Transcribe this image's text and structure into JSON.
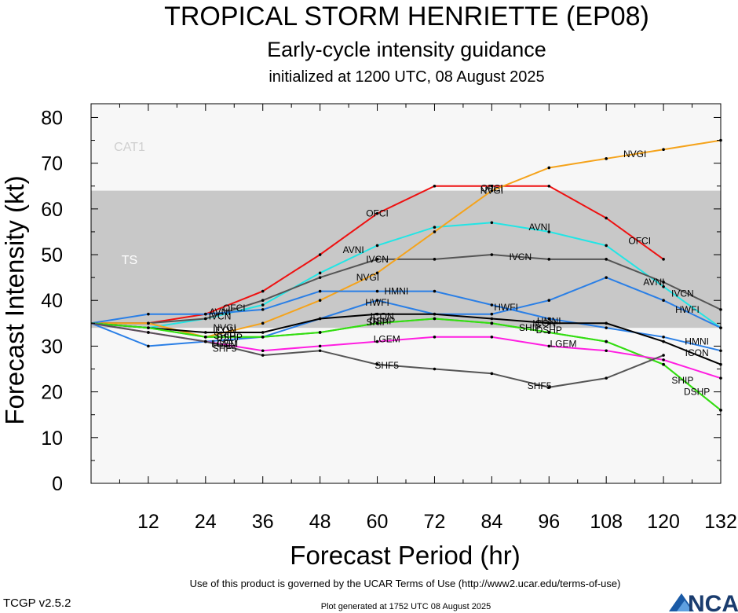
{
  "header": {
    "title": "TROPICAL STORM HENRIETTE (EP08)",
    "subtitle": "Early-cycle intensity guidance",
    "init_line": "initialized at 1200 UTC, 08 August 2025"
  },
  "footer": {
    "terms": "Use of this product is governed by the UCAR Terms of Use (http://www2.ucar.edu/terms-of-use)",
    "generated": "Plot generated at 1752 UTC   08 August 2025",
    "version": "TCGP v2.5.2",
    "logo_text": "NCAR"
  },
  "chart_data": {
    "type": "line",
    "title": "TROPICAL STORM HENRIETTE (EP08)",
    "xlabel": "Forecast Period (hr)",
    "ylabel": "Forecast Intensity (kt)",
    "xlim": [
      0,
      132
    ],
    "ylim": [
      0,
      80
    ],
    "x_ticks": [
      12,
      24,
      36,
      48,
      60,
      72,
      84,
      96,
      108,
      120,
      132
    ],
    "y_ticks": [
      0,
      10,
      20,
      30,
      40,
      50,
      60,
      70,
      80
    ],
    "grid": false,
    "bands": [
      {
        "label": "TS",
        "from": 34,
        "to": 64,
        "color": "#c8c8c8"
      },
      {
        "label": "CAT1",
        "from": 64,
        "to": 83,
        "color": "#f7f7f7"
      }
    ],
    "series": [
      {
        "name": "OFCI",
        "color": "#ee1111",
        "points": [
          [
            0,
            35
          ],
          [
            12,
            35
          ],
          [
            24,
            37
          ],
          [
            36,
            42
          ],
          [
            48,
            50
          ],
          [
            60,
            59
          ],
          [
            72,
            65
          ],
          [
            84,
            65
          ],
          [
            96,
            65
          ],
          [
            108,
            58
          ],
          [
            120,
            49
          ]
        ],
        "labels": [
          [
            30,
            38.3
          ],
          [
            60,
            59
          ],
          [
            84,
            64.5
          ],
          [
            115,
            53
          ]
        ]
      },
      {
        "name": "AVNI",
        "color": "#22e5e5",
        "points": [
          [
            0,
            35
          ],
          [
            12,
            34
          ],
          [
            24,
            36
          ],
          [
            36,
            39
          ],
          [
            48,
            46
          ],
          [
            60,
            52
          ],
          [
            72,
            56
          ],
          [
            84,
            57
          ],
          [
            96,
            55
          ],
          [
            108,
            52
          ],
          [
            120,
            43
          ],
          [
            132,
            34
          ]
        ],
        "labels": [
          [
            27,
            37.5
          ],
          [
            55,
            51
          ],
          [
            94,
            56
          ],
          [
            118,
            44
          ]
        ]
      },
      {
        "name": "IVCN",
        "color": "#555555",
        "points": [
          [
            0,
            35
          ],
          [
            12,
            35
          ],
          [
            24,
            36
          ],
          [
            36,
            40
          ],
          [
            48,
            45
          ],
          [
            60,
            49
          ],
          [
            72,
            49
          ],
          [
            84,
            50
          ],
          [
            96,
            49
          ],
          [
            108,
            49
          ],
          [
            120,
            44
          ],
          [
            132,
            38
          ]
        ],
        "labels": [
          [
            27,
            36.5
          ],
          [
            60,
            49
          ],
          [
            90,
            49.5
          ],
          [
            124,
            41.5
          ]
        ]
      },
      {
        "name": "NVGI",
        "color": "#f5a31b",
        "points": [
          [
            0,
            35
          ],
          [
            12,
            35
          ],
          [
            24,
            32
          ],
          [
            36,
            35
          ],
          [
            48,
            40
          ],
          [
            60,
            46
          ],
          [
            72,
            55
          ],
          [
            84,
            64
          ],
          [
            96,
            69
          ],
          [
            108,
            71
          ],
          [
            120,
            73
          ],
          [
            132,
            75
          ]
        ],
        "labels": [
          [
            28,
            34
          ],
          [
            58,
            45
          ],
          [
            84,
            64
          ],
          [
            114,
            72
          ]
        ]
      },
      {
        "name": "HMNI",
        "color": "#2a7fe6",
        "points": [
          [
            0,
            35
          ],
          [
            12,
            37
          ],
          [
            24,
            37
          ],
          [
            36,
            38
          ],
          [
            48,
            42
          ],
          [
            60,
            42
          ],
          [
            72,
            42
          ],
          [
            84,
            39
          ],
          [
            96,
            36
          ],
          [
            108,
            34
          ],
          [
            120,
            32
          ],
          [
            132,
            29
          ]
        ],
        "labels": [
          [
            64,
            42
          ],
          [
            96,
            35.5
          ],
          [
            127,
            31
          ]
        ]
      },
      {
        "name": "HWFI",
        "color": "#2a7fe6",
        "points": [
          [
            0,
            35
          ],
          [
            12,
            30
          ],
          [
            24,
            31
          ],
          [
            36,
            32
          ],
          [
            48,
            36
          ],
          [
            60,
            40
          ],
          [
            72,
            37
          ],
          [
            84,
            37
          ],
          [
            96,
            40
          ],
          [
            108,
            45
          ],
          [
            120,
            40
          ],
          [
            132,
            34
          ]
        ],
        "labels": [
          [
            28,
            30.5
          ],
          [
            60,
            39.5
          ],
          [
            87,
            38.5
          ],
          [
            125,
            38
          ]
        ]
      },
      {
        "name": "ICON",
        "color": "#000000",
        "points": [
          [
            0,
            35
          ],
          [
            12,
            34
          ],
          [
            24,
            33
          ],
          [
            36,
            33
          ],
          [
            48,
            36
          ],
          [
            60,
            37
          ],
          [
            72,
            37
          ],
          [
            84,
            36
          ],
          [
            96,
            35
          ],
          [
            108,
            35
          ],
          [
            120,
            31
          ],
          [
            132,
            26
          ]
        ],
        "labels": [
          [
            28,
            33.5
          ],
          [
            61,
            36.5
          ],
          [
            95,
            35
          ],
          [
            127,
            28.5
          ]
        ]
      },
      {
        "name": "DSHP",
        "color": "#33dd11",
        "points": [
          [
            0,
            35
          ],
          [
            12,
            34
          ],
          [
            24,
            32
          ],
          [
            36,
            32
          ],
          [
            48,
            33
          ],
          [
            60,
            35
          ],
          [
            72,
            36
          ],
          [
            84,
            35
          ],
          [
            96,
            33
          ],
          [
            108,
            31
          ],
          [
            120,
            26
          ],
          [
            132,
            16
          ]
        ],
        "labels": [
          [
            29,
            32
          ],
          [
            61,
            35.5
          ],
          [
            96,
            33.5
          ],
          [
            127,
            20
          ]
        ]
      },
      {
        "name": "SHIP",
        "color": "#33dd11",
        "points": [
          [
            0,
            35
          ],
          [
            12,
            34
          ],
          [
            24,
            32
          ],
          [
            36,
            32
          ],
          [
            48,
            33
          ],
          [
            60,
            35
          ],
          [
            72,
            36
          ],
          [
            84,
            35
          ],
          [
            96,
            33
          ],
          [
            108,
            31
          ],
          [
            120,
            26
          ],
          [
            132,
            16
          ]
        ],
        "labels": [
          [
            28,
            32.3
          ],
          [
            60,
            35.2
          ],
          [
            92,
            34
          ],
          [
            124,
            22.5
          ]
        ]
      },
      {
        "name": "LGEM",
        "color": "#ff1ee1",
        "points": [
          [
            0,
            35
          ],
          [
            12,
            33
          ],
          [
            24,
            31
          ],
          [
            36,
            29
          ],
          [
            48,
            30
          ],
          [
            60,
            31
          ],
          [
            72,
            32
          ],
          [
            84,
            32
          ],
          [
            96,
            30
          ],
          [
            108,
            29
          ],
          [
            120,
            27
          ],
          [
            132,
            23
          ]
        ],
        "labels": [
          [
            28,
            30.5
          ],
          [
            62,
            31.5
          ],
          [
            99,
            30.5
          ]
        ]
      },
      {
        "name": "SHF5",
        "color": "#555555",
        "points": [
          [
            0,
            35
          ],
          [
            12,
            33
          ],
          [
            24,
            31
          ],
          [
            36,
            28
          ],
          [
            48,
            29
          ],
          [
            60,
            26
          ],
          [
            72,
            25
          ],
          [
            84,
            24
          ],
          [
            96,
            21
          ],
          [
            108,
            23
          ],
          [
            120,
            28
          ]
        ],
        "labels": [
          [
            28,
            29.5
          ],
          [
            62,
            25.8
          ],
          [
            94,
            21.3
          ]
        ]
      }
    ]
  }
}
